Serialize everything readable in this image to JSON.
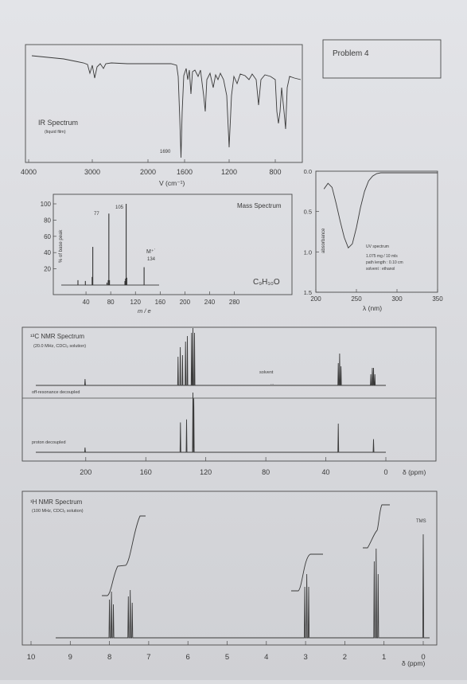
{
  "problem": {
    "label": "Problem 4"
  },
  "ir": {
    "title": "IR Spectrum",
    "subtitle": "(liquid film)",
    "peak_label": "1690",
    "xlabel": "V (cm⁻¹)",
    "ticks": [
      "4000",
      "3000",
      "2000",
      "1600",
      "1200",
      "800"
    ]
  },
  "mass": {
    "title": "Mass Spectrum",
    "formula": "C₉H₁₀O",
    "ylabel": "% of base peak",
    "xlabel": "m / e",
    "yticks": [
      "100",
      "80",
      "60",
      "40",
      "20"
    ],
    "xticks": [
      "40",
      "80",
      "120",
      "160",
      "200",
      "240",
      "280"
    ],
    "label_77": "77",
    "label_105": "105",
    "mplus": "M⁺˙",
    "mplus_mz": "134"
  },
  "uv": {
    "ylabel": "absorbance",
    "xlabel": "λ (nm)",
    "yticks": [
      "0.0",
      "0.5",
      "1.0",
      "1.5"
    ],
    "xticks": [
      "200",
      "250",
      "300",
      "350"
    ],
    "info": [
      "UV spectrum",
      "1.075 mg / 10 mls",
      "path length : 0.10 cm",
      "solvent : ethanol"
    ]
  },
  "c13": {
    "title": "¹³C NMR Spectrum",
    "subtitle": "(20.0 MHz, CDCl₃ solution)",
    "solvent": "solvent",
    "off_res": "off-resonance decoupled",
    "proton": "proton decoupled",
    "xticks": [
      "200",
      "160",
      "120",
      "80",
      "40",
      "0"
    ],
    "xlabel": "δ (ppm)"
  },
  "h1": {
    "title": "¹H NMR Spectrum",
    "subtitle": "(100 MHz, CDCl₃ solution)",
    "tms": "TMS",
    "xticks": [
      "10",
      "9",
      "8",
      "7",
      "6",
      "5",
      "4",
      "3",
      "2",
      "1",
      "0"
    ],
    "xlabel": "δ (ppm)"
  },
  "chart_data": [
    {
      "type": "line",
      "title": "IR Spectrum",
      "xlabel": "V (cm⁻¹)",
      "xlim": [
        4000,
        600
      ],
      "annotations": [
        {
          "x": 1690,
          "label": "1690"
        }
      ]
    },
    {
      "type": "bar",
      "title": "Mass Spectrum",
      "xlabel": "m / e",
      "ylabel": "% of base peak",
      "xlim": [
        0,
        320
      ],
      "ylim": [
        0,
        100
      ],
      "x": [
        27,
        39,
        50,
        51,
        74,
        76,
        77,
        78,
        103,
        104,
        105,
        106,
        134
      ],
      "values": [
        6,
        5,
        10,
        47,
        3,
        6,
        88,
        6,
        5,
        8,
        100,
        9,
        22
      ]
    },
    {
      "type": "line",
      "xlabel": "λ (nm)",
      "ylabel": "absorbance",
      "xlim": [
        200,
        350
      ],
      "ylim": [
        1.5,
        0.0
      ],
      "x": [
        210,
        215,
        220,
        225,
        230,
        235,
        240,
        245,
        250,
        255,
        260,
        265,
        270,
        275,
        280,
        290,
        300,
        320,
        340,
        350
      ],
      "y": [
        0.22,
        0.15,
        0.2,
        0.4,
        0.62,
        0.82,
        0.95,
        0.9,
        0.7,
        0.45,
        0.25,
        0.12,
        0.06,
        0.03,
        0.02,
        0.02,
        0.02,
        0.02,
        0.02,
        0.02
      ]
    },
    {
      "type": "bar",
      "title": "¹³C NMR Spectrum",
      "xlabel": "δ (ppm)",
      "xlim": [
        230,
        -5
      ],
      "x": [
        200.5,
        136.9,
        132.8,
        128.6,
        128.0,
        31.7,
        8.2
      ],
      "values": [
        0.08,
        0.5,
        0.55,
        1.0,
        0.9,
        0.48,
        0.22
      ]
    },
    {
      "type": "line",
      "title": "¹H NMR Spectrum",
      "xlabel": "δ (ppm)",
      "xlim": [
        10.2,
        -0.3
      ],
      "x": [
        7.95,
        7.45,
        2.97,
        1.2,
        0.0
      ],
      "y": [
        0.45,
        0.55,
        0.6,
        0.8,
        0.68
      ]
    }
  ]
}
